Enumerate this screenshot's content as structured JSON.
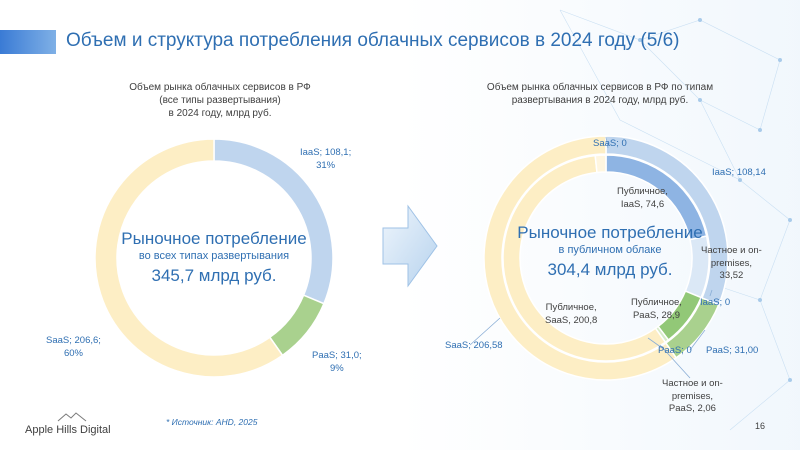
{
  "page": {
    "title": "Объем и структура потребления облачных сервисов в 2024 году (5/6)",
    "source": "* Источник: AHD, 2025",
    "logo_text": "Apple Hills Digital",
    "page_number": "16"
  },
  "colors": {
    "title": "#2f6fb2",
    "saas": "#fdeec5",
    "iaas": "#bfd5ee",
    "paas": "#a9d18e",
    "iaas_public": "#8eb4e3",
    "paas_public": "#92c877",
    "label": "#2f6fb2"
  },
  "chart_data": [
    {
      "type": "pie",
      "subtitle_lines": [
        "Объем рынка облачных сервисов в РФ",
        "(все типы развертывания)",
        "в 2024 году, млрд руб."
      ],
      "center_lines": [
        "Рыночное потребление",
        "во всех типах развертывания",
        "345,7 млрд руб."
      ],
      "slices": [
        {
          "name": "IaaS",
          "value": 108.1,
          "label_lines": [
            "IaaS;  108,1;",
            "31%"
          ]
        },
        {
          "name": "PaaS",
          "value": 31.0,
          "label_lines": [
            "PaaS;  31,0;",
            "9%"
          ]
        },
        {
          "name": "SaaS",
          "value": 206.6,
          "label_lines": [
            "SaaS;  206,6;",
            "60%"
          ]
        }
      ]
    },
    {
      "type": "pie",
      "subtitle_lines": [
        "Объем рынка облачных сервисов в РФ по типам",
        "развертывания в 2024 году, млрд руб."
      ],
      "center_lines": [
        "Рыночное потребление",
        "в публичном облаке",
        "304,4 млрд руб."
      ],
      "outer_ring": [
        {
          "name": "IaaS",
          "value": 108.14,
          "label_lines": [
            "IaaS;  108,14"
          ]
        },
        {
          "name": "PaaS",
          "value": 31.0,
          "label_lines": [
            "PaaS;  31,00"
          ]
        },
        {
          "name": "SaaS",
          "value": 206.58,
          "label_lines": [
            "SaaS;  206,58"
          ]
        }
      ],
      "inner_ring": [
        {
          "name": "Публичное, IaaS",
          "value": 74.6,
          "label_lines": [
            "Публичное,",
            "IaaS,  74,6"
          ]
        },
        {
          "name": "Частное и on-premises, IaaS",
          "value": 33.52,
          "label_lines": [
            "Частное и on-",
            "premises,",
            "33,52"
          ]
        },
        {
          "name": "Публичное, PaaS",
          "value": 28.9,
          "label_lines": [
            "Публичное,",
            "PaaS,  28,9"
          ]
        },
        {
          "name": "Частное и on-premises, PaaS",
          "value": 2.06,
          "label_lines": [
            "Частное и on-",
            "premises,",
            "PaaS,  2,06"
          ]
        },
        {
          "name": "Публичное, SaaS",
          "value": 200.8,
          "label_lines": [
            "Публичное,",
            "SaaS,  200,8"
          ]
        },
        {
          "name": "Частное и on-premises, SaaS",
          "value": 5.78
        }
      ],
      "zero_labels": [
        "SaaS;  0",
        "IaaS;  0",
        "PaaS;  0"
      ]
    }
  ]
}
